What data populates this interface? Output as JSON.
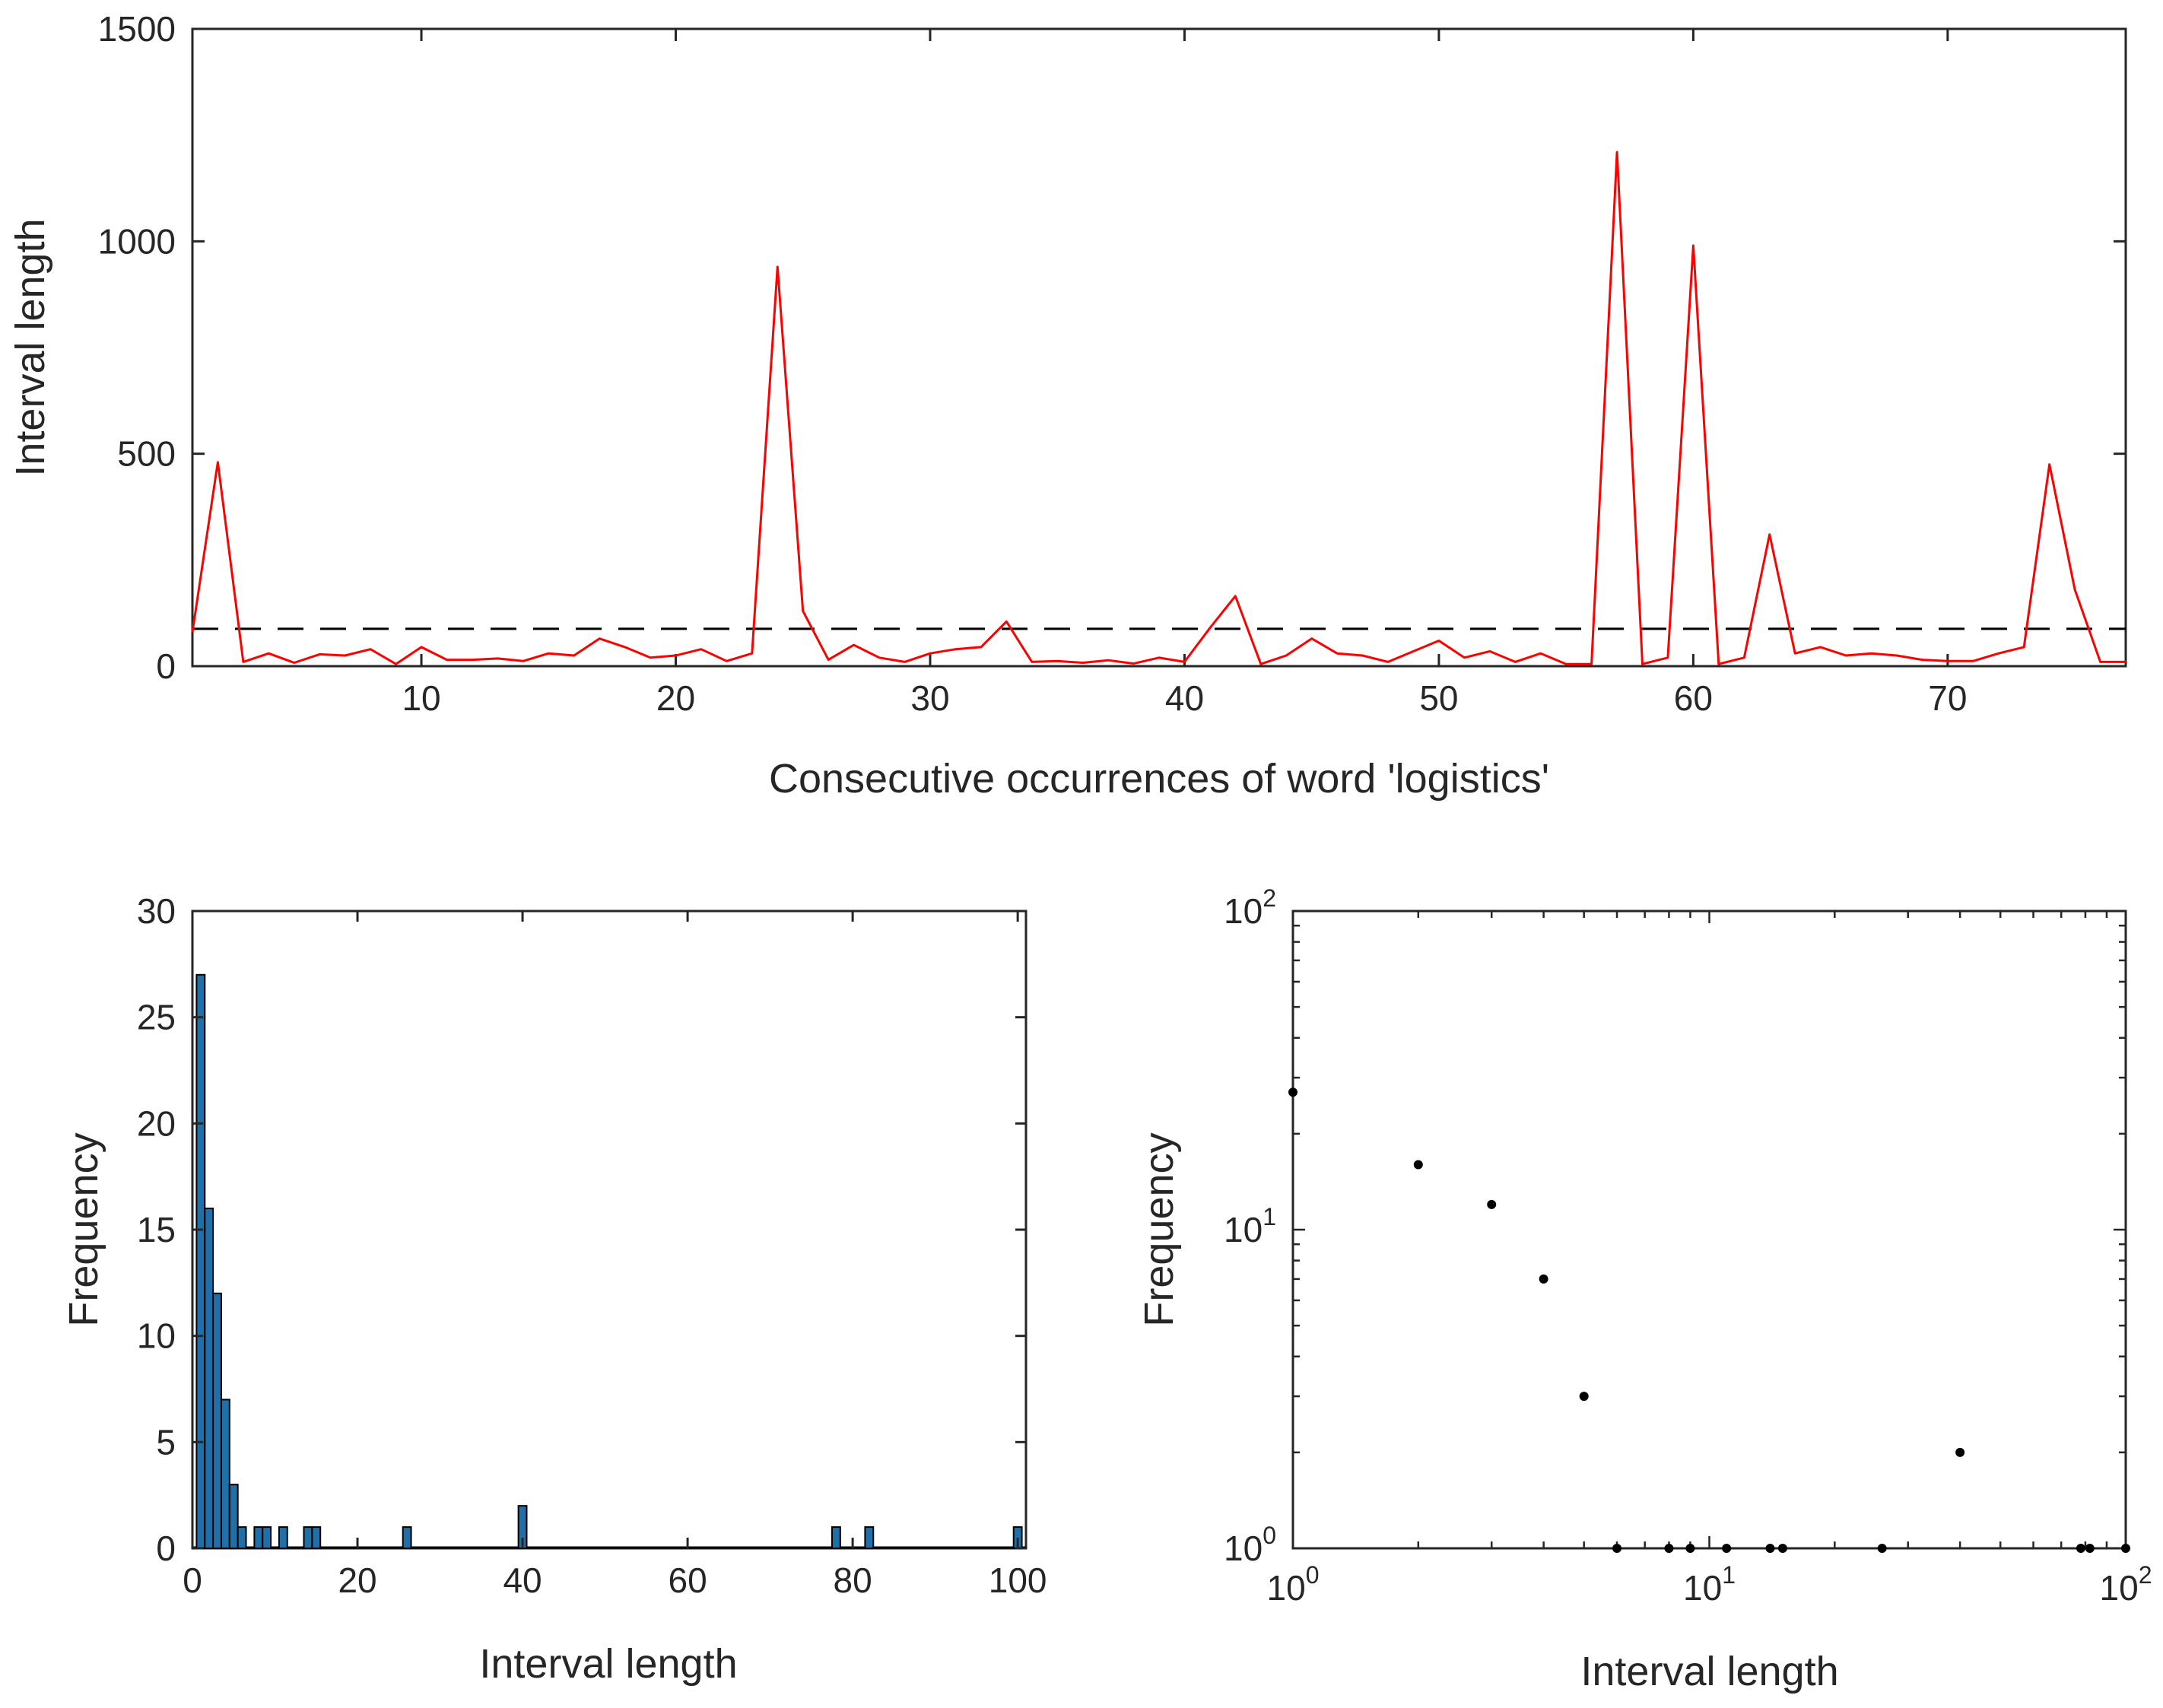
{
  "chart_data": [
    {
      "type": "line",
      "xlabel": "Consecutive occurrences of word 'logistics'",
      "ylabel": "Interval length",
      "xlim": [
        1,
        77
      ],
      "ylim": [
        0,
        1500
      ],
      "xticks": [
        10,
        20,
        30,
        40,
        50,
        60,
        70
      ],
      "yticks": [
        0,
        500,
        1000,
        1500
      ],
      "grid": false,
      "colors": {
        "series": "#ff0000",
        "reference": "#000000"
      },
      "series": [
        {
          "x": [
            1,
            2,
            3,
            4,
            5,
            6,
            7,
            8,
            9,
            10,
            11,
            12,
            13,
            14,
            15,
            16,
            17,
            18,
            19,
            20,
            21,
            22,
            23,
            24,
            25,
            26,
            27,
            28,
            29,
            30,
            31,
            32,
            33,
            34,
            35,
            36,
            37,
            38,
            39,
            40,
            41,
            42,
            43,
            44,
            45,
            46,
            47,
            48,
            49,
            50,
            51,
            52,
            53,
            54,
            55,
            56,
            57,
            58,
            59,
            60,
            61,
            62,
            63,
            64,
            65,
            66,
            67,
            68,
            69,
            70,
            71,
            72,
            73,
            74,
            75,
            76,
            77
          ],
          "y": [
            80,
            480,
            10,
            30,
            8,
            28,
            25,
            40,
            5,
            45,
            15,
            15,
            18,
            12,
            30,
            25,
            65,
            45,
            20,
            25,
            40,
            12,
            30,
            940,
            130,
            15,
            50,
            20,
            10,
            30,
            40,
            45,
            105,
            10,
            12,
            8,
            14,
            6,
            20,
            10,
            90,
            165,
            5,
            25,
            65,
            30,
            25,
            10,
            35,
            60,
            20,
            35,
            10,
            30,
            5,
            5,
            1210,
            5,
            20,
            990,
            5,
            20,
            310,
            30,
            45,
            25,
            30,
            25,
            15,
            12,
            12,
            30,
            45,
            475,
            180,
            10,
            10
          ]
        },
        {
          "style": "dashed",
          "y_constant": 88
        }
      ]
    },
    {
      "type": "bar",
      "xlabel": "Interval length",
      "ylabel": "Frequency",
      "xlim": [
        0,
        101
      ],
      "ylim": [
        0,
        30
      ],
      "xticks": [
        0,
        20,
        40,
        60,
        80,
        100
      ],
      "yticks": [
        0,
        5,
        10,
        15,
        20,
        25,
        30
      ],
      "grid": false,
      "colors": {
        "bar_fill": "#1f6fa8",
        "bar_edge": "#000000"
      },
      "bar_width": 1,
      "x": [
        1,
        2,
        3,
        4,
        5,
        6,
        8,
        9,
        11,
        14,
        15,
        26,
        40,
        78,
        82,
        100
      ],
      "values": [
        27,
        16,
        12,
        7,
        3,
        1,
        1,
        1,
        1,
        1,
        1,
        1,
        2,
        1,
        1,
        1
      ]
    },
    {
      "type": "scatter",
      "xlabel": "Interval length",
      "ylabel": "Frequency",
      "xscale": "log",
      "yscale": "log",
      "xlim": [
        1,
        100
      ],
      "ylim": [
        1,
        100
      ],
      "xticks": [
        {
          "base": "10",
          "exp": "0"
        },
        {
          "base": "10",
          "exp": "1"
        },
        {
          "base": "10",
          "exp": "2"
        }
      ],
      "yticks": [
        {
          "base": "10",
          "exp": "0"
        },
        {
          "base": "10",
          "exp": "1"
        },
        {
          "base": "10",
          "exp": "2"
        }
      ],
      "grid": false,
      "colors": {
        "marker": "#000000"
      },
      "x": [
        1,
        2,
        3,
        4,
        5,
        6,
        8,
        9,
        11,
        14,
        15,
        26,
        40,
        78,
        82,
        100
      ],
      "y": [
        27,
        16,
        12,
        7,
        3,
        1,
        1,
        1,
        1,
        1,
        1,
        1,
        2,
        1,
        1,
        1
      ]
    }
  ]
}
